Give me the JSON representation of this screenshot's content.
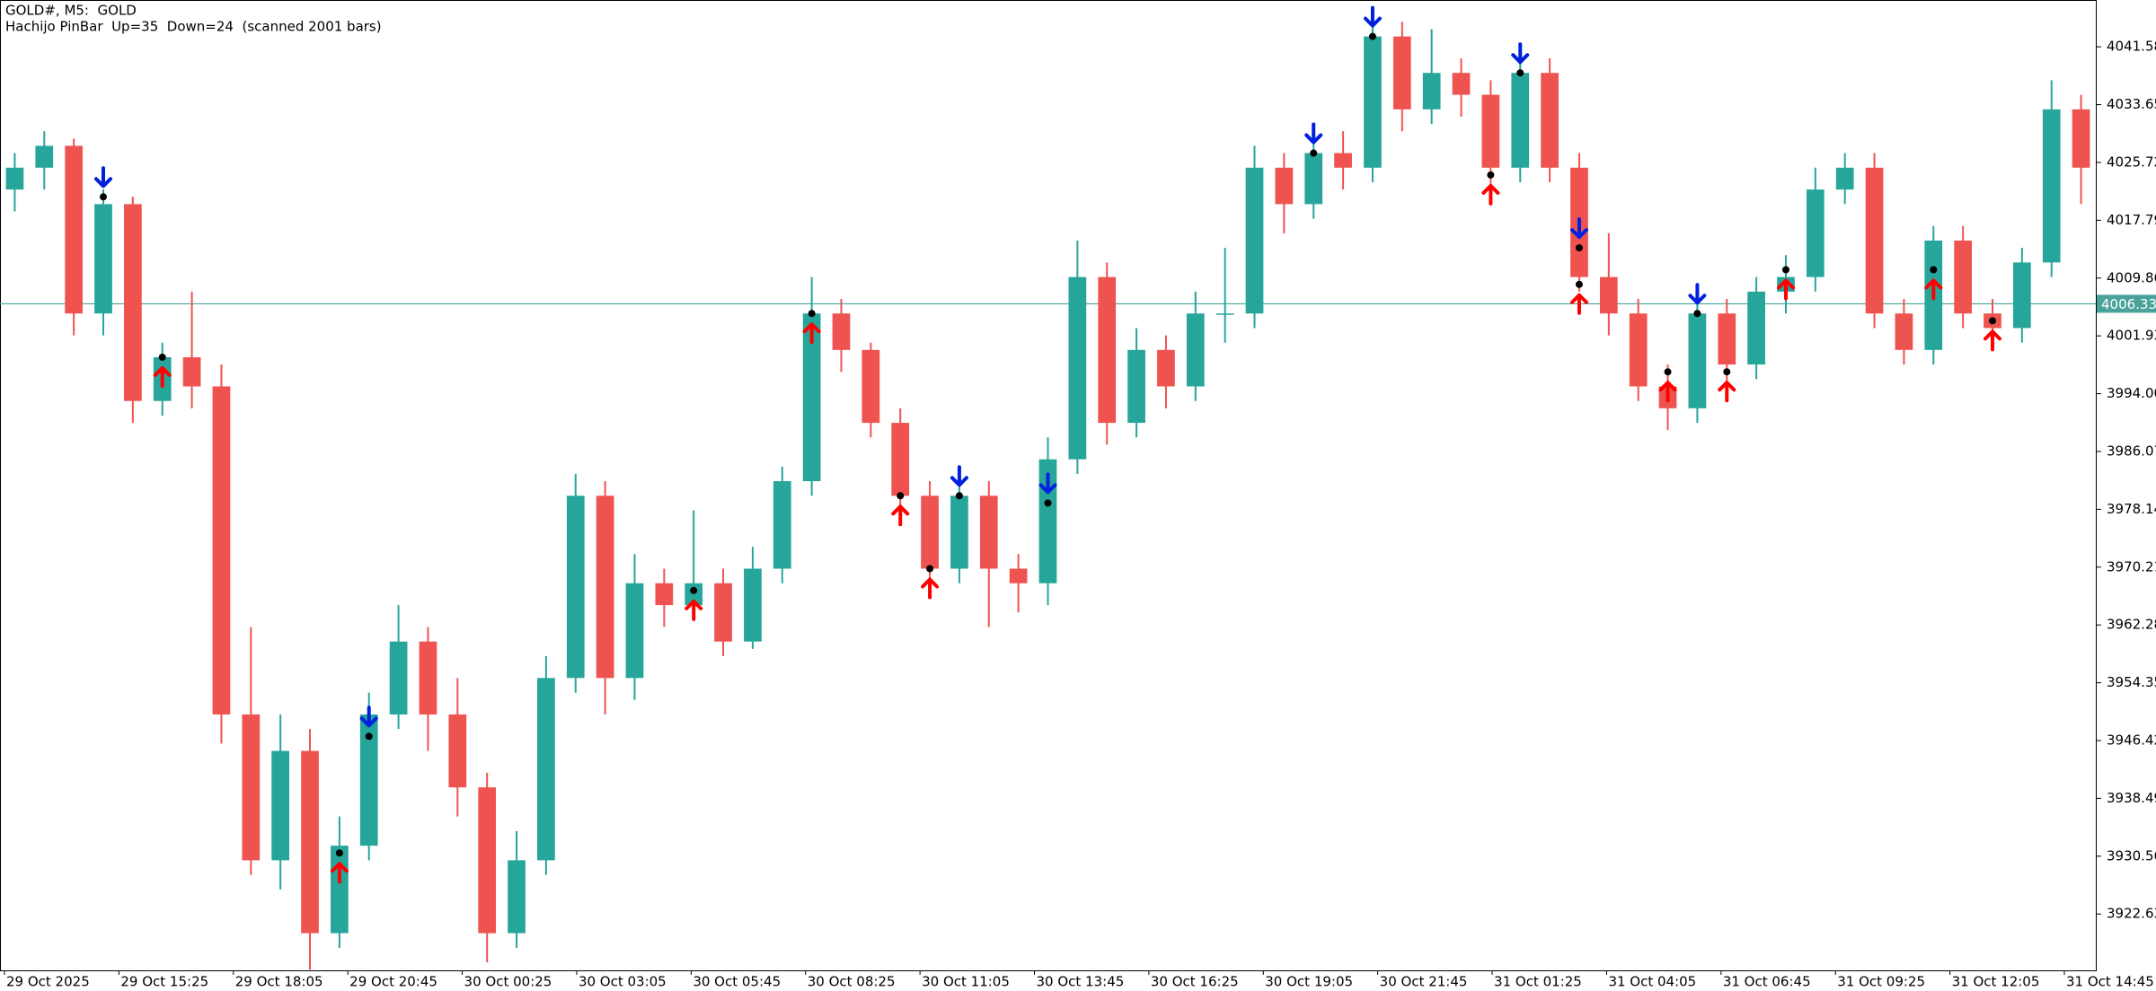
{
  "chart_data": {
    "type": "candlestick",
    "title": "GOLD#, M5:  GOLD",
    "subtitle": "Hachijo PinBar  Up=35  Down=24  (scanned 2001 bars)",
    "xlabels": [
      "29 Oct 2025",
      "29 Oct 15:25",
      "29 Oct 18:05",
      "29 Oct 20:45",
      "30 Oct 00:25",
      "30 Oct 03:05",
      "30 Oct 05:45",
      "30 Oct 08:25",
      "30 Oct 11:05",
      "30 Oct 13:45",
      "30 Oct 16:25",
      "30 Oct 19:05",
      "30 Oct 21:45",
      "31 Oct 01:25",
      "31 Oct 04:05",
      "31 Oct 06:45",
      "31 Oct 09:25",
      "31 Oct 12:05",
      "31 Oct 14:45"
    ],
    "open": [
      4022,
      4025,
      4028,
      4005,
      4020,
      3993,
      3999,
      3995,
      3950,
      3930,
      3945,
      3920,
      3932,
      3950,
      3960,
      3950,
      3940,
      3920,
      3930,
      3955,
      3980,
      3955,
      3968,
      3965,
      3968,
      3960,
      3970,
      3982,
      4005,
      4000,
      3990,
      3980,
      3970,
      3980,
      3970,
      3968,
      3985,
      4010,
      3990,
      4000,
      3995,
      4005,
      4005,
      4025,
      4020,
      4027,
      4025,
      4043,
      4033,
      4038,
      4035,
      4025,
      4038,
      4025,
      4010,
      4005,
      3995,
      3992,
      4005,
      3998,
      4008,
      4010,
      4022,
      4025,
      4005,
      4000,
      4015,
      4005,
      4003,
      4012,
      4033
    ],
    "high": [
      4027,
      4030,
      4029,
      4022,
      4021,
      4001,
      4008,
      3998,
      3962,
      3950,
      3948,
      3936,
      3953,
      3965,
      3962,
      3955,
      3942,
      3934,
      3958,
      3983,
      3982,
      3972,
      3970,
      3978,
      3970,
      3973,
      3984,
      4010,
      4007,
      4001,
      3992,
      3982,
      3983,
      3982,
      3972,
      3988,
      4015,
      4012,
      4003,
      4002,
      4008,
      4014,
      4028,
      4027,
      4029,
      4030,
      4046,
      4045,
      4044,
      4040,
      4037,
      4041,
      4040,
      4027,
      4016,
      4007,
      3998,
      4008,
      4007,
      4010,
      4013,
      4025,
      4027,
      4027,
      4007,
      4017,
      4017,
      4007,
      4014,
      4037,
      4035
    ],
    "low": [
      4019,
      4022,
      4002,
      4002,
      3990,
      3991,
      3992,
      3946,
      3928,
      3926,
      3915,
      3918,
      3930,
      3948,
      3945,
      3936,
      3916,
      3918,
      3928,
      3953,
      3950,
      3952,
      3962,
      3963,
      3958,
      3959,
      3968,
      3980,
      3997,
      3988,
      3978,
      3967,
      3968,
      3962,
      3964,
      3965,
      3983,
      3987,
      3988,
      3992,
      3993,
      4001,
      4003,
      4016,
      4018,
      4022,
      4023,
      4030,
      4031,
      4032,
      4022,
      4023,
      4023,
      4008,
      4002,
      3993,
      3989,
      3990,
      3995,
      3996,
      4005,
      4008,
      4020,
      4003,
      3998,
      3998,
      4003,
      4001,
      4001,
      4010,
      4020
    ],
    "close": [
      4025,
      4028,
      4005,
      4020,
      3993,
      3999,
      3995,
      3950,
      3930,
      3945,
      3920,
      3932,
      3950,
      3960,
      3950,
      3940,
      3920,
      3930,
      3955,
      3980,
      3955,
      3968,
      3965,
      3968,
      3960,
      3970,
      3982,
      4005,
      4000,
      3990,
      3980,
      3970,
      3980,
      3970,
      3968,
      3985,
      4010,
      3990,
      4000,
      3995,
      4005,
      4005,
      4025,
      4020,
      4027,
      4025,
      4043,
      4033,
      4038,
      4035,
      4025,
      4038,
      4025,
      4010,
      4005,
      3995,
      3992,
      4005,
      3998,
      4008,
      4010,
      4022,
      4025,
      4005,
      4000,
      4015,
      4005,
      4003,
      4012,
      4033,
      4025
    ],
    "colors": {
      "up": "#26a69a",
      "down": "#ef5350"
    },
    "ylim": [
      3914.9,
      4048.0
    ],
    "yticks": [
      4041.58,
      4033.65,
      4025.72,
      4017.79,
      4009.86,
      4001.93,
      {
        "value": 3994,
        "label": "3994.00"
      },
      3986.07,
      3978.14,
      3970.21,
      3962.28,
      3954.35,
      3946.42,
      3938.49,
      3930.56,
      3922.63
    ],
    "grid": false,
    "last_price": 4006.33,
    "last_price_color": "#4aa39a",
    "up_signals": {
      "color": "#ff0000",
      "bars": [
        5,
        11,
        23,
        27,
        30,
        31,
        50,
        53,
        56,
        58,
        60,
        65,
        67
      ],
      "values": [
        3999,
        3931,
        3967,
        4005,
        3980,
        3970,
        4024,
        4009,
        3997,
        3997,
        4011,
        4011,
        4004
      ]
    },
    "down_signals": {
      "color": "#0020e0",
      "bars": [
        3,
        12,
        32,
        35,
        44,
        46,
        51,
        53,
        57
      ],
      "values": [
        4021,
        3947,
        3980,
        3979,
        4027,
        4043,
        4038,
        4014,
        4005
      ]
    }
  }
}
